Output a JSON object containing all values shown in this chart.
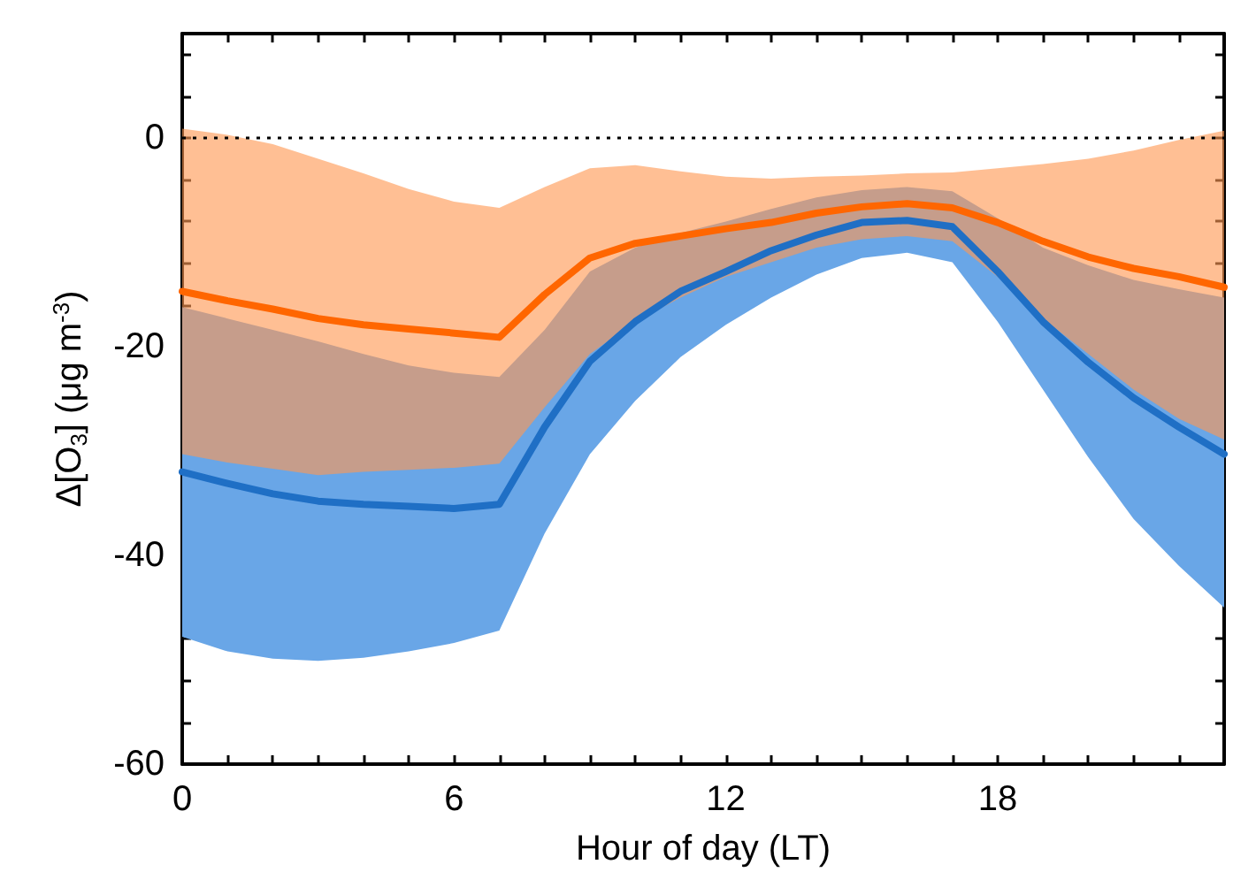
{
  "chart_data": {
    "type": "line",
    "xlabel": "Hour of day (LT)",
    "ylabel": "Δ[O$_{3}$] (μg m$^{-3}$)",
    "x": [
      0,
      1,
      2,
      3,
      4,
      5,
      6,
      7,
      8,
      9,
      10,
      11,
      12,
      13,
      14,
      15,
      16,
      17,
      18,
      19,
      20,
      21,
      22,
      23
    ],
    "xlim": [
      0,
      23
    ],
    "xticks": [
      0,
      6,
      12,
      18
    ],
    "ylim": [
      -60,
      10
    ],
    "yticks": [
      -60,
      -40,
      -20,
      0
    ],
    "series": [
      {
        "color": "#1f6fc5",
        "values": [
          -32,
          -33.1,
          -34.1,
          -34.8,
          -35.1,
          -35.3,
          -35.5,
          -35.1,
          -27.7,
          -21.4,
          -17.6,
          -14.7,
          -12.8,
          -10.8,
          -9.3,
          -8.1,
          -7.9,
          -8.5,
          -12.8,
          -17.6,
          -21.5,
          -24.9,
          -27.7,
          -30.3
        ],
        "lower": [
          -47.8,
          -49.2,
          -49.9,
          -50.1,
          -49.8,
          -49.2,
          -48.4,
          -47.2,
          -37.9,
          -30.3,
          -25.2,
          -21,
          -17.9,
          -15.3,
          -13.1,
          -11.5,
          -11,
          -11.9,
          -17.6,
          -24.1,
          -30.6,
          -36.5,
          -41,
          -45
        ],
        "upper": [
          -16.2,
          -17.3,
          -18.4,
          -19.5,
          -20.7,
          -21.8,
          -22.5,
          -22.9,
          -18.4,
          -12.8,
          -10.5,
          -9.1,
          -8,
          -6.8,
          -5.7,
          -5,
          -4.7,
          -5.1,
          -7.7,
          -10.5,
          -12.2,
          -13.6,
          -14.5,
          -15.3
        ]
      },
      {
        "color": "#ff6600",
        "values": [
          -14.7,
          -15.6,
          -16.4,
          -17.3,
          -17.9,
          -18.3,
          -18.7,
          -19.1,
          -15,
          -11.5,
          -10.1,
          -9.4,
          -8.7,
          -8.1,
          -7.2,
          -6.6,
          -6.3,
          -6.7,
          -8.1,
          -9.9,
          -11.4,
          -12.5,
          -13.3,
          -14.3
        ],
        "lower": [
          -30.3,
          -31.1,
          -31.7,
          -32.3,
          -32,
          -31.8,
          -31.6,
          -31.2,
          -25.8,
          -20.7,
          -17.6,
          -15.3,
          -13.3,
          -11.9,
          -10.5,
          -9.7,
          -9.4,
          -9.9,
          -13.3,
          -17.3,
          -20.7,
          -24.1,
          -26.9,
          -28.9
        ],
        "upper": [
          0.9,
          0.3,
          -0.6,
          -2,
          -3.4,
          -4.9,
          -6.1,
          -6.7,
          -4.7,
          -2.9,
          -2.6,
          -3.2,
          -3.7,
          -3.9,
          -3.7,
          -3.6,
          -3.4,
          -3.3,
          -2.9,
          -2.5,
          -2,
          -1.2,
          -0.2,
          0.7
        ]
      }
    ],
    "ref_lines": [
      {
        "axis": "y",
        "value": 0,
        "color": "#000000",
        "line_style": "dotted"
      }
    ],
    "grid": false
  }
}
